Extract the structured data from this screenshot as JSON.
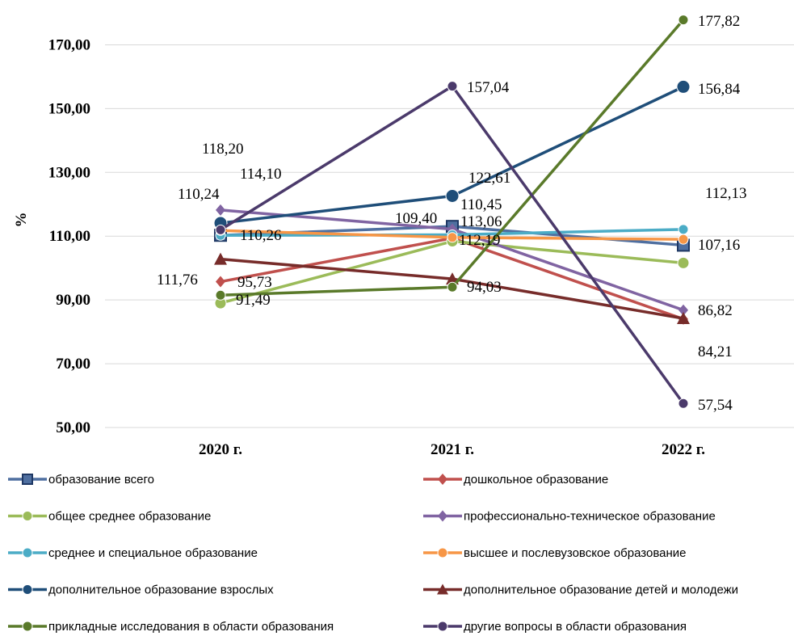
{
  "chart_data": {
    "type": "line",
    "categories": [
      "2020 г.",
      "2021 г.",
      "2022 г."
    ],
    "ylabel": "%",
    "ylim": [
      50,
      180
    ],
    "yticks": [
      "50,00",
      "70,00",
      "90,00",
      "110,00",
      "130,00",
      "150,00",
      "170,00"
    ],
    "legend_position": "bottom",
    "series": [
      {
        "name": "образование всего",
        "color": "#4F6FA0",
        "marker": "square",
        "values": [
          110.26,
          113.06,
          107.16
        ],
        "labels": [
          "110,26",
          "113,06",
          "107,16"
        ]
      },
      {
        "name": "дошкольное образование",
        "color": "#C0504D",
        "marker": "diamond",
        "values": [
          95.73,
          109.4,
          84.0
        ],
        "labels": [
          "95,73",
          "109,40",
          ""
        ]
      },
      {
        "name": "общее среднее образование",
        "color": "#9BBB59",
        "marker": "circle",
        "values": [
          89.0,
          108.4,
          101.6
        ],
        "labels": [
          "",
          "",
          ""
        ]
      },
      {
        "name": "профессионально-техническое образование",
        "color": "#8064A2",
        "marker": "diamond",
        "values": [
          118.2,
          112.19,
          86.82
        ],
        "labels": [
          "118,20",
          "112,19",
          "86,82"
        ]
      },
      {
        "name": "среднее и специальное образование",
        "color": "#4BACC6",
        "marker": "circle",
        "values": [
          110.24,
          110.45,
          112.13
        ],
        "labels": [
          "110,24",
          "110,45",
          "112,13"
        ]
      },
      {
        "name": "высшее и послевузовское образование",
        "color": "#F79646",
        "marker": "circle",
        "values": [
          111.76,
          109.6,
          109.0
        ],
        "labels": [
          "111,76",
          "",
          ""
        ]
      },
      {
        "name": "дополнительное образование взрослых",
        "color": "#1F4E79",
        "marker": "circle",
        "values": [
          114.1,
          122.61,
          156.84
        ],
        "labels": [
          "114,10",
          "122,61",
          "156,84"
        ]
      },
      {
        "name": "дополнительное образование детей и молодежи",
        "color": "#772C2A",
        "marker": "triangle",
        "values": [
          102.8,
          96.6,
          84.21
        ],
        "labels": [
          "",
          "",
          "84,21"
        ]
      },
      {
        "name": "прикладные исследования в области образования",
        "color": "#5A7A2A",
        "marker": "circle",
        "values": [
          91.49,
          94.03,
          177.82
        ],
        "labels": [
          "91,49",
          "94,03",
          "177,82"
        ]
      },
      {
        "name": "другие вопросы в области образования",
        "color": "#4B3A6B",
        "marker": "circle",
        "values": [
          112.0,
          157.04,
          57.54
        ],
        "labels": [
          "",
          "157,04",
          "57,54"
        ]
      }
    ]
  }
}
